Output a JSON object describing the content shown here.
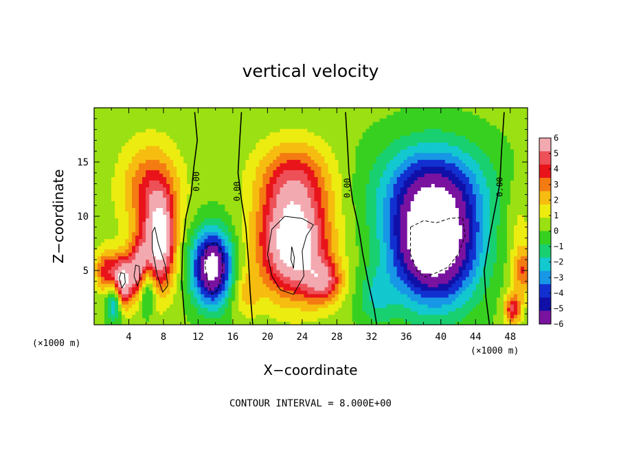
{
  "chart_data": {
    "type": "heatmap",
    "title": "vertical velocity",
    "xlabel": "X−coordinate",
    "ylabel": "Z−coordinate",
    "x_unit_left": "(×1000 m)",
    "x_unit_right": "(×1000 m)",
    "xlim": [
      0,
      50
    ],
    "ylim": [
      0,
      20
    ],
    "x_ticks": [
      4,
      8,
      12,
      16,
      20,
      24,
      28,
      32,
      36,
      40,
      44,
      48
    ],
    "x_tick_labels": [
      "4",
      "8",
      "12",
      "16",
      "20",
      "24",
      "28",
      "32",
      "36",
      "40",
      "44",
      "48"
    ],
    "y_ticks": [
      5,
      10,
      15
    ],
    "y_tick_labels": [
      "5",
      "10",
      "15"
    ],
    "colorbar": {
      "levels": [
        6,
        5,
        4,
        3,
        2,
        1,
        0,
        -1,
        -2,
        -3,
        -4,
        -5,
        -6
      ],
      "labels": [
        "6",
        "5",
        "4",
        "3",
        "2",
        "1",
        "0",
        "−1",
        "−2",
        "−3",
        "−4",
        "−5",
        "−6"
      ],
      "colors": [
        "#f3a9b0",
        "#ee5058",
        "#e8141a",
        "#f47b12",
        "#f6bd10",
        "#ecec10",
        "#9ae012",
        "#38d020",
        "#18d070",
        "#13c8cf",
        "#1797e6",
        "#1230d0",
        "#1010a8",
        "#7a12a0"
      ],
      "out_of_range_color": "#ffffff"
    },
    "contour_interval": "CONTOUR INTERVAL = 8.000E+00",
    "contour_labels": [
      {
        "text": "0.00",
        "x": 11.8,
        "y": 13.2
      },
      {
        "text": "0.00",
        "x": 16.5,
        "y": 12.3
      },
      {
        "text": "0.00",
        "x": 29.2,
        "y": 12.6
      },
      {
        "text": "0.00",
        "x": 46.8,
        "y": 12.7
      }
    ],
    "features": [
      {
        "kind": "max",
        "x": 6.5,
        "z": 12.5,
        "amp": 4.0,
        "sx": 2.4,
        "sz": 3.0
      },
      {
        "kind": "max",
        "x": 7.6,
        "z": 7.5,
        "amp": 8.0,
        "sx": 1.2,
        "sz": 3.0
      },
      {
        "kind": "max",
        "x": 5.2,
        "z": 5.0,
        "amp": 7.0,
        "sx": 0.9,
        "sz": 2.0
      },
      {
        "kind": "max",
        "x": 3.3,
        "z": 4.0,
        "amp": 7.0,
        "sx": 0.7,
        "sz": 1.6
      },
      {
        "kind": "max",
        "x": 1.5,
        "z": 5.0,
        "amp": 4.5,
        "sx": 1.0,
        "sz": 1.4
      },
      {
        "kind": "min",
        "x": 6.0,
        "z": 3.5,
        "amp": -5.0,
        "sx": 0.7,
        "sz": 1.6
      },
      {
        "kind": "min",
        "x": 2.3,
        "z": 2.0,
        "amp": -4.0,
        "sx": 0.6,
        "sz": 1.2
      },
      {
        "kind": "min",
        "x": 13.6,
        "z": 5.3,
        "amp": -9.0,
        "sx": 1.6,
        "sz": 2.4
      },
      {
        "kind": "max",
        "x": 23.0,
        "z": 7.5,
        "amp": 9.0,
        "sx": 2.8,
        "sz": 3.3
      },
      {
        "kind": "max",
        "x": 23.0,
        "z": 13.5,
        "amp": 4.0,
        "sx": 3.0,
        "sz": 2.5
      },
      {
        "kind": "max",
        "x": 26.5,
        "z": 4.0,
        "amp": 4.5,
        "sx": 1.5,
        "sz": 1.4
      },
      {
        "kind": "min",
        "x": 39.2,
        "z": 7.5,
        "amp": -10.5,
        "sx": 3.5,
        "sz": 3.8
      },
      {
        "kind": "min",
        "x": 39.0,
        "z": 13.0,
        "amp": -4.0,
        "sx": 4.5,
        "sz": 3.0
      },
      {
        "kind": "max",
        "x": 48.3,
        "z": 1.5,
        "amp": 5.0,
        "sx": 0.7,
        "sz": 1.0
      },
      {
        "kind": "max",
        "x": 49.5,
        "z": 5.0,
        "amp": 3.5,
        "sx": 0.8,
        "sz": 1.5
      },
      {
        "kind": "max",
        "x": 49.0,
        "z": 9.0,
        "amp": 1.2,
        "sx": 1.2,
        "sz": 3.0
      },
      {
        "kind": "min",
        "x": 32.5,
        "z": 2.5,
        "amp": -2.0,
        "sx": 1.5,
        "sz": 1.8
      },
      {
        "kind": "max",
        "x": 17.5,
        "z": 3.0,
        "amp": 2.0,
        "sx": 1.2,
        "sz": 1.5
      }
    ],
    "zero_contours": [
      [
        [
          11.6,
          19.6
        ],
        [
          11.9,
          17.0
        ],
        [
          11.5,
          14.5
        ],
        [
          11.2,
          12.0
        ],
        [
          10.6,
          10.0
        ],
        [
          10.2,
          7.0
        ],
        [
          10.1,
          4.0
        ],
        [
          10.4,
          1.0
        ],
        [
          10.5,
          0.0
        ]
      ],
      [
        [
          17.0,
          19.6
        ],
        [
          16.8,
          17.0
        ],
        [
          16.6,
          14.0
        ],
        [
          17.0,
          11.5
        ],
        [
          17.5,
          9.0
        ],
        [
          17.8,
          6.0
        ],
        [
          18.0,
          3.0
        ],
        [
          18.3,
          0.0
        ]
      ],
      [
        [
          29.0,
          19.6
        ],
        [
          29.2,
          17.0
        ],
        [
          29.4,
          14.0
        ],
        [
          29.8,
          11.5
        ],
        [
          30.5,
          9.0
        ],
        [
          31.0,
          6.5
        ],
        [
          31.6,
          4.0
        ],
        [
          32.3,
          1.5
        ],
        [
          32.6,
          0.0
        ]
      ],
      [
        [
          47.3,
          19.6
        ],
        [
          47.0,
          16.0
        ],
        [
          46.8,
          13.0
        ],
        [
          46.2,
          10.5
        ],
        [
          45.6,
          8.0
        ],
        [
          45.0,
          5.0
        ],
        [
          45.2,
          2.5
        ],
        [
          45.6,
          0.0
        ]
      ]
    ],
    "pos_contours": [
      [
        [
          20.0,
          6.5
        ],
        [
          20.5,
          8.8
        ],
        [
          22.0,
          10.0
        ],
        [
          24.0,
          9.8
        ],
        [
          25.3,
          9.2
        ],
        [
          24.5,
          8.2
        ],
        [
          24.0,
          6.8
        ],
        [
          24.2,
          4.5
        ],
        [
          23.0,
          2.8
        ],
        [
          21.5,
          3.2
        ],
        [
          20.5,
          4.5
        ],
        [
          20.0,
          6.5
        ]
      ],
      [
        [
          22.8,
          7.2
        ],
        [
          23.1,
          6.2
        ],
        [
          23.0,
          5.2
        ],
        [
          22.7,
          6.0
        ],
        [
          22.8,
          7.2
        ]
      ],
      [
        [
          7.0,
          9.0
        ],
        [
          7.4,
          7.5
        ],
        [
          8.2,
          5.5
        ],
        [
          8.5,
          3.6
        ],
        [
          7.9,
          3.0
        ],
        [
          7.3,
          4.5
        ],
        [
          6.7,
          7.0
        ],
        [
          6.7,
          8.5
        ],
        [
          7.0,
          9.0
        ]
      ],
      [
        [
          4.6,
          4.5
        ],
        [
          4.8,
          5.5
        ],
        [
          5.2,
          5.4
        ],
        [
          5.3,
          4.2
        ],
        [
          5.0,
          3.6
        ],
        [
          4.6,
          4.5
        ]
      ],
      [
        [
          2.9,
          4.3
        ],
        [
          3.1,
          4.8
        ],
        [
          3.5,
          4.7
        ],
        [
          3.6,
          3.9
        ],
        [
          3.2,
          3.4
        ],
        [
          2.9,
          4.3
        ]
      ]
    ],
    "neg_contours": [
      [
        [
          13.0,
          7.2
        ],
        [
          14.0,
          7.6
        ],
        [
          14.8,
          6.8
        ],
        [
          14.8,
          5.0
        ],
        [
          14.3,
          3.2
        ],
        [
          13.6,
          2.8
        ],
        [
          13.1,
          4.0
        ],
        [
          12.8,
          5.5
        ],
        [
          13.0,
          7.2
        ]
      ],
      [
        [
          36.5,
          9.0
        ],
        [
          38.0,
          9.6
        ],
        [
          39.5,
          9.4
        ],
        [
          41.0,
          9.8
        ],
        [
          42.5,
          9.9
        ],
        [
          42.8,
          8.2
        ],
        [
          42.0,
          6.5
        ],
        [
          40.8,
          5.3
        ],
        [
          39.5,
          4.8
        ],
        [
          38.2,
          4.4
        ],
        [
          37.2,
          5.0
        ],
        [
          36.5,
          6.5
        ],
        [
          36.5,
          9.0
        ]
      ]
    ]
  }
}
